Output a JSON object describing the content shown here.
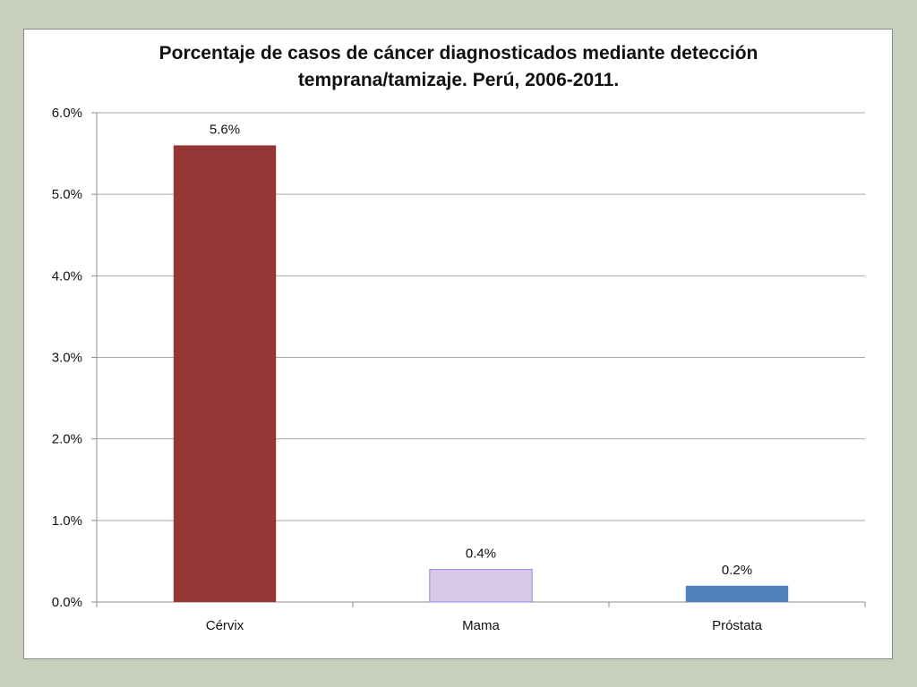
{
  "chart_data": {
    "type": "bar",
    "title": "Porcentaje de casos de cáncer diagnosticados mediante detección",
    "subtitle": "temprana/tamizaje. Perú, 2006-2011.",
    "categories": [
      "Cérvix",
      "Mama",
      "Próstata"
    ],
    "values": [
      5.6,
      0.4,
      0.2
    ],
    "data_labels": [
      "5.6%",
      "0.4%",
      "0.2%"
    ],
    "colors": [
      "#943634",
      "#d9c8ea",
      "#4f81bd"
    ],
    "ylim": [
      0,
      6
    ],
    "yticks": [
      0,
      1,
      2,
      3,
      4,
      5,
      6
    ],
    "ytick_labels": [
      "0.0%",
      "1.0%",
      "2.0%",
      "3.0%",
      "4.0%",
      "5.0%",
      "6.0%"
    ],
    "grid": true,
    "legend": "none",
    "xlabel": "",
    "ylabel": ""
  }
}
